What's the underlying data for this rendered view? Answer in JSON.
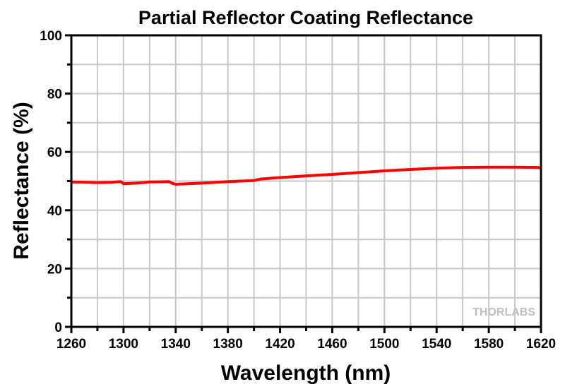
{
  "chart_data": {
    "type": "line",
    "title": "Partial Reflector Coating Reflectance",
    "xlabel": "Wavelength (nm)",
    "ylabel": "Reflectance (%)",
    "xlim": [
      1260,
      1620
    ],
    "ylim": [
      0,
      100
    ],
    "grid": true,
    "xticks": [
      1260,
      1300,
      1340,
      1380,
      1420,
      1460,
      1500,
      1540,
      1580,
      1620
    ],
    "xtick_labels": [
      "1260",
      "1300",
      "1340",
      "1380",
      "1420",
      "1460",
      "1500",
      "1540",
      "1580",
      "1620"
    ],
    "yticks": [
      0,
      20,
      40,
      60,
      80,
      100
    ],
    "ytick_labels": [
      "0",
      "20",
      "40",
      "60",
      "80",
      "100"
    ],
    "series": [
      {
        "name": "Reflectance",
        "color": "#ff0000",
        "x": [
          1260,
          1280,
          1290,
          1298,
          1300,
          1310,
          1320,
          1335,
          1337,
          1340,
          1360,
          1380,
          1400,
          1405,
          1420,
          1440,
          1460,
          1480,
          1500,
          1520,
          1540,
          1560,
          1580,
          1600,
          1618,
          1620
        ],
        "y": [
          49.7,
          49.5,
          49.6,
          49.8,
          49.1,
          49.3,
          49.7,
          49.8,
          49.3,
          48.9,
          49.3,
          49.8,
          50.2,
          50.7,
          51.2,
          51.8,
          52.3,
          52.9,
          53.5,
          54.0,
          54.4,
          54.7,
          54.8,
          54.8,
          54.7,
          54.3
        ]
      }
    ]
  },
  "watermark": "THORLABS"
}
